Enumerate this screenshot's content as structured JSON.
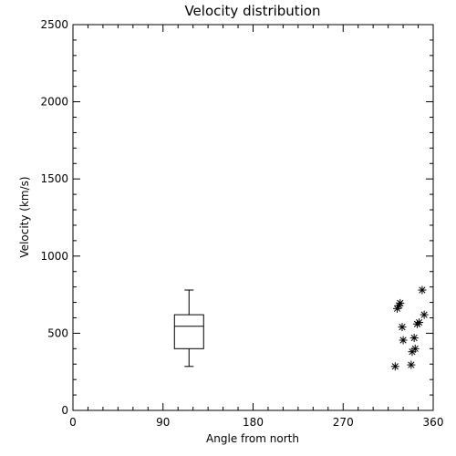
{
  "chart_data": {
    "type": "box-scatter",
    "title": "Velocity distribution",
    "xlabel": "Angle from north",
    "ylabel": "Velocity (km/s)",
    "xlim": [
      0,
      360
    ],
    "ylim": [
      0,
      2500
    ],
    "xticks": [
      0,
      90,
      180,
      270,
      360
    ],
    "xtick_labels": [
      "0",
      "90",
      "180",
      "270",
      "360"
    ],
    "yticks": [
      0,
      500,
      1000,
      1500,
      2000,
      2500
    ],
    "ytick_labels": [
      "0",
      "500",
      "1000",
      "1500",
      "2000",
      "2500"
    ],
    "grid": false,
    "box": {
      "x": 116,
      "whisker_low": 285,
      "q1": 400,
      "median": 545,
      "q3": 620,
      "whisker_high": 780
    },
    "scatter": {
      "marker": "asterisk",
      "points": [
        {
          "x": 322,
          "y": 285
        },
        {
          "x": 324,
          "y": 660
        },
        {
          "x": 326,
          "y": 680
        },
        {
          "x": 327,
          "y": 695
        },
        {
          "x": 329,
          "y": 540
        },
        {
          "x": 330,
          "y": 455
        },
        {
          "x": 338,
          "y": 295
        },
        {
          "x": 339,
          "y": 380
        },
        {
          "x": 341,
          "y": 470
        },
        {
          "x": 342,
          "y": 400
        },
        {
          "x": 344,
          "y": 560
        },
        {
          "x": 346,
          "y": 570
        },
        {
          "x": 349,
          "y": 780
        },
        {
          "x": 351,
          "y": 620
        }
      ]
    }
  }
}
